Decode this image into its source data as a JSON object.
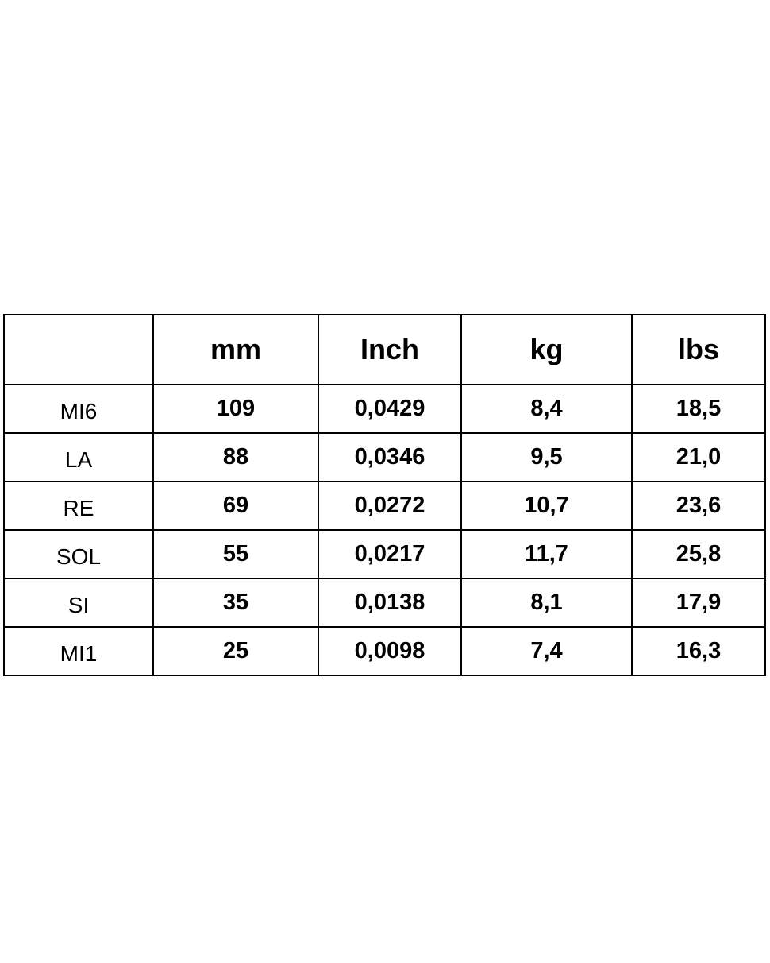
{
  "table": {
    "headers": [
      "",
      "mm",
      "Inch",
      "kg",
      "lbs"
    ],
    "rows": [
      [
        "MI6",
        "109",
        "0,0429",
        "8,4",
        "18,5"
      ],
      [
        "LA",
        "88",
        "0,0346",
        "9,5",
        "21,0"
      ],
      [
        "RE",
        "69",
        "0,0272",
        "10,7",
        "23,6"
      ],
      [
        "SOL",
        "55",
        "0,0217",
        "11,7",
        "25,8"
      ],
      [
        "SI",
        "35",
        "0,0138",
        "8,1",
        "17,9"
      ],
      [
        "MI1",
        "25",
        "0,0098",
        "7,4",
        "16,3"
      ]
    ]
  }
}
